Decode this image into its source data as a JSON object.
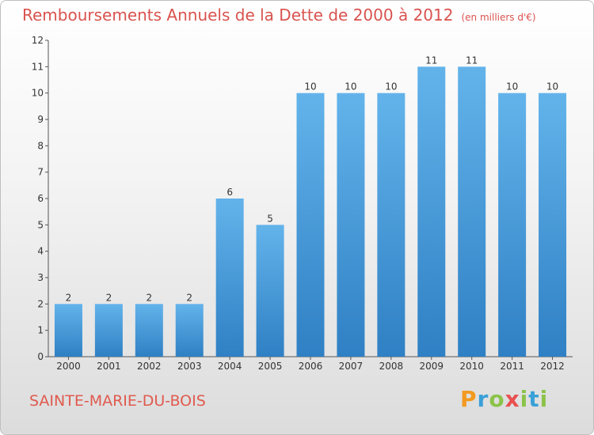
{
  "header": {
    "title": "Remboursements Annuels de la Dette de 2000 à 2012",
    "subtitle": "(en milliers d'€)"
  },
  "footer": {
    "commune": "SAINTE-MARIE-DU-BOIS",
    "logo": "Proxiti",
    "logo_letters": [
      "P",
      "r",
      "o",
      "x",
      "i",
      "t",
      "i"
    ]
  },
  "colors": {
    "bar_light": "#63b3eb",
    "bar_dark": "#2f80c4",
    "title": "#d9534f"
  },
  "chart_data": {
    "type": "bar",
    "categories": [
      "2000",
      "2001",
      "2002",
      "2003",
      "2004",
      "2005",
      "2006",
      "2007",
      "2008",
      "2009",
      "2010",
      "2011",
      "2012"
    ],
    "values": [
      2,
      2,
      2,
      2,
      6,
      5,
      10,
      10,
      10,
      11,
      11,
      10,
      10
    ],
    "title": "Remboursements Annuels de la Dette de 2000 à 2012",
    "subtitle": "(en milliers d'€)",
    "xlabel": "",
    "ylabel": "",
    "ylim": [
      0,
      12
    ],
    "yticks": [
      0,
      1,
      2,
      3,
      4,
      5,
      6,
      7,
      8,
      9,
      10,
      11,
      12
    ],
    "grid": false,
    "legend": "none"
  }
}
